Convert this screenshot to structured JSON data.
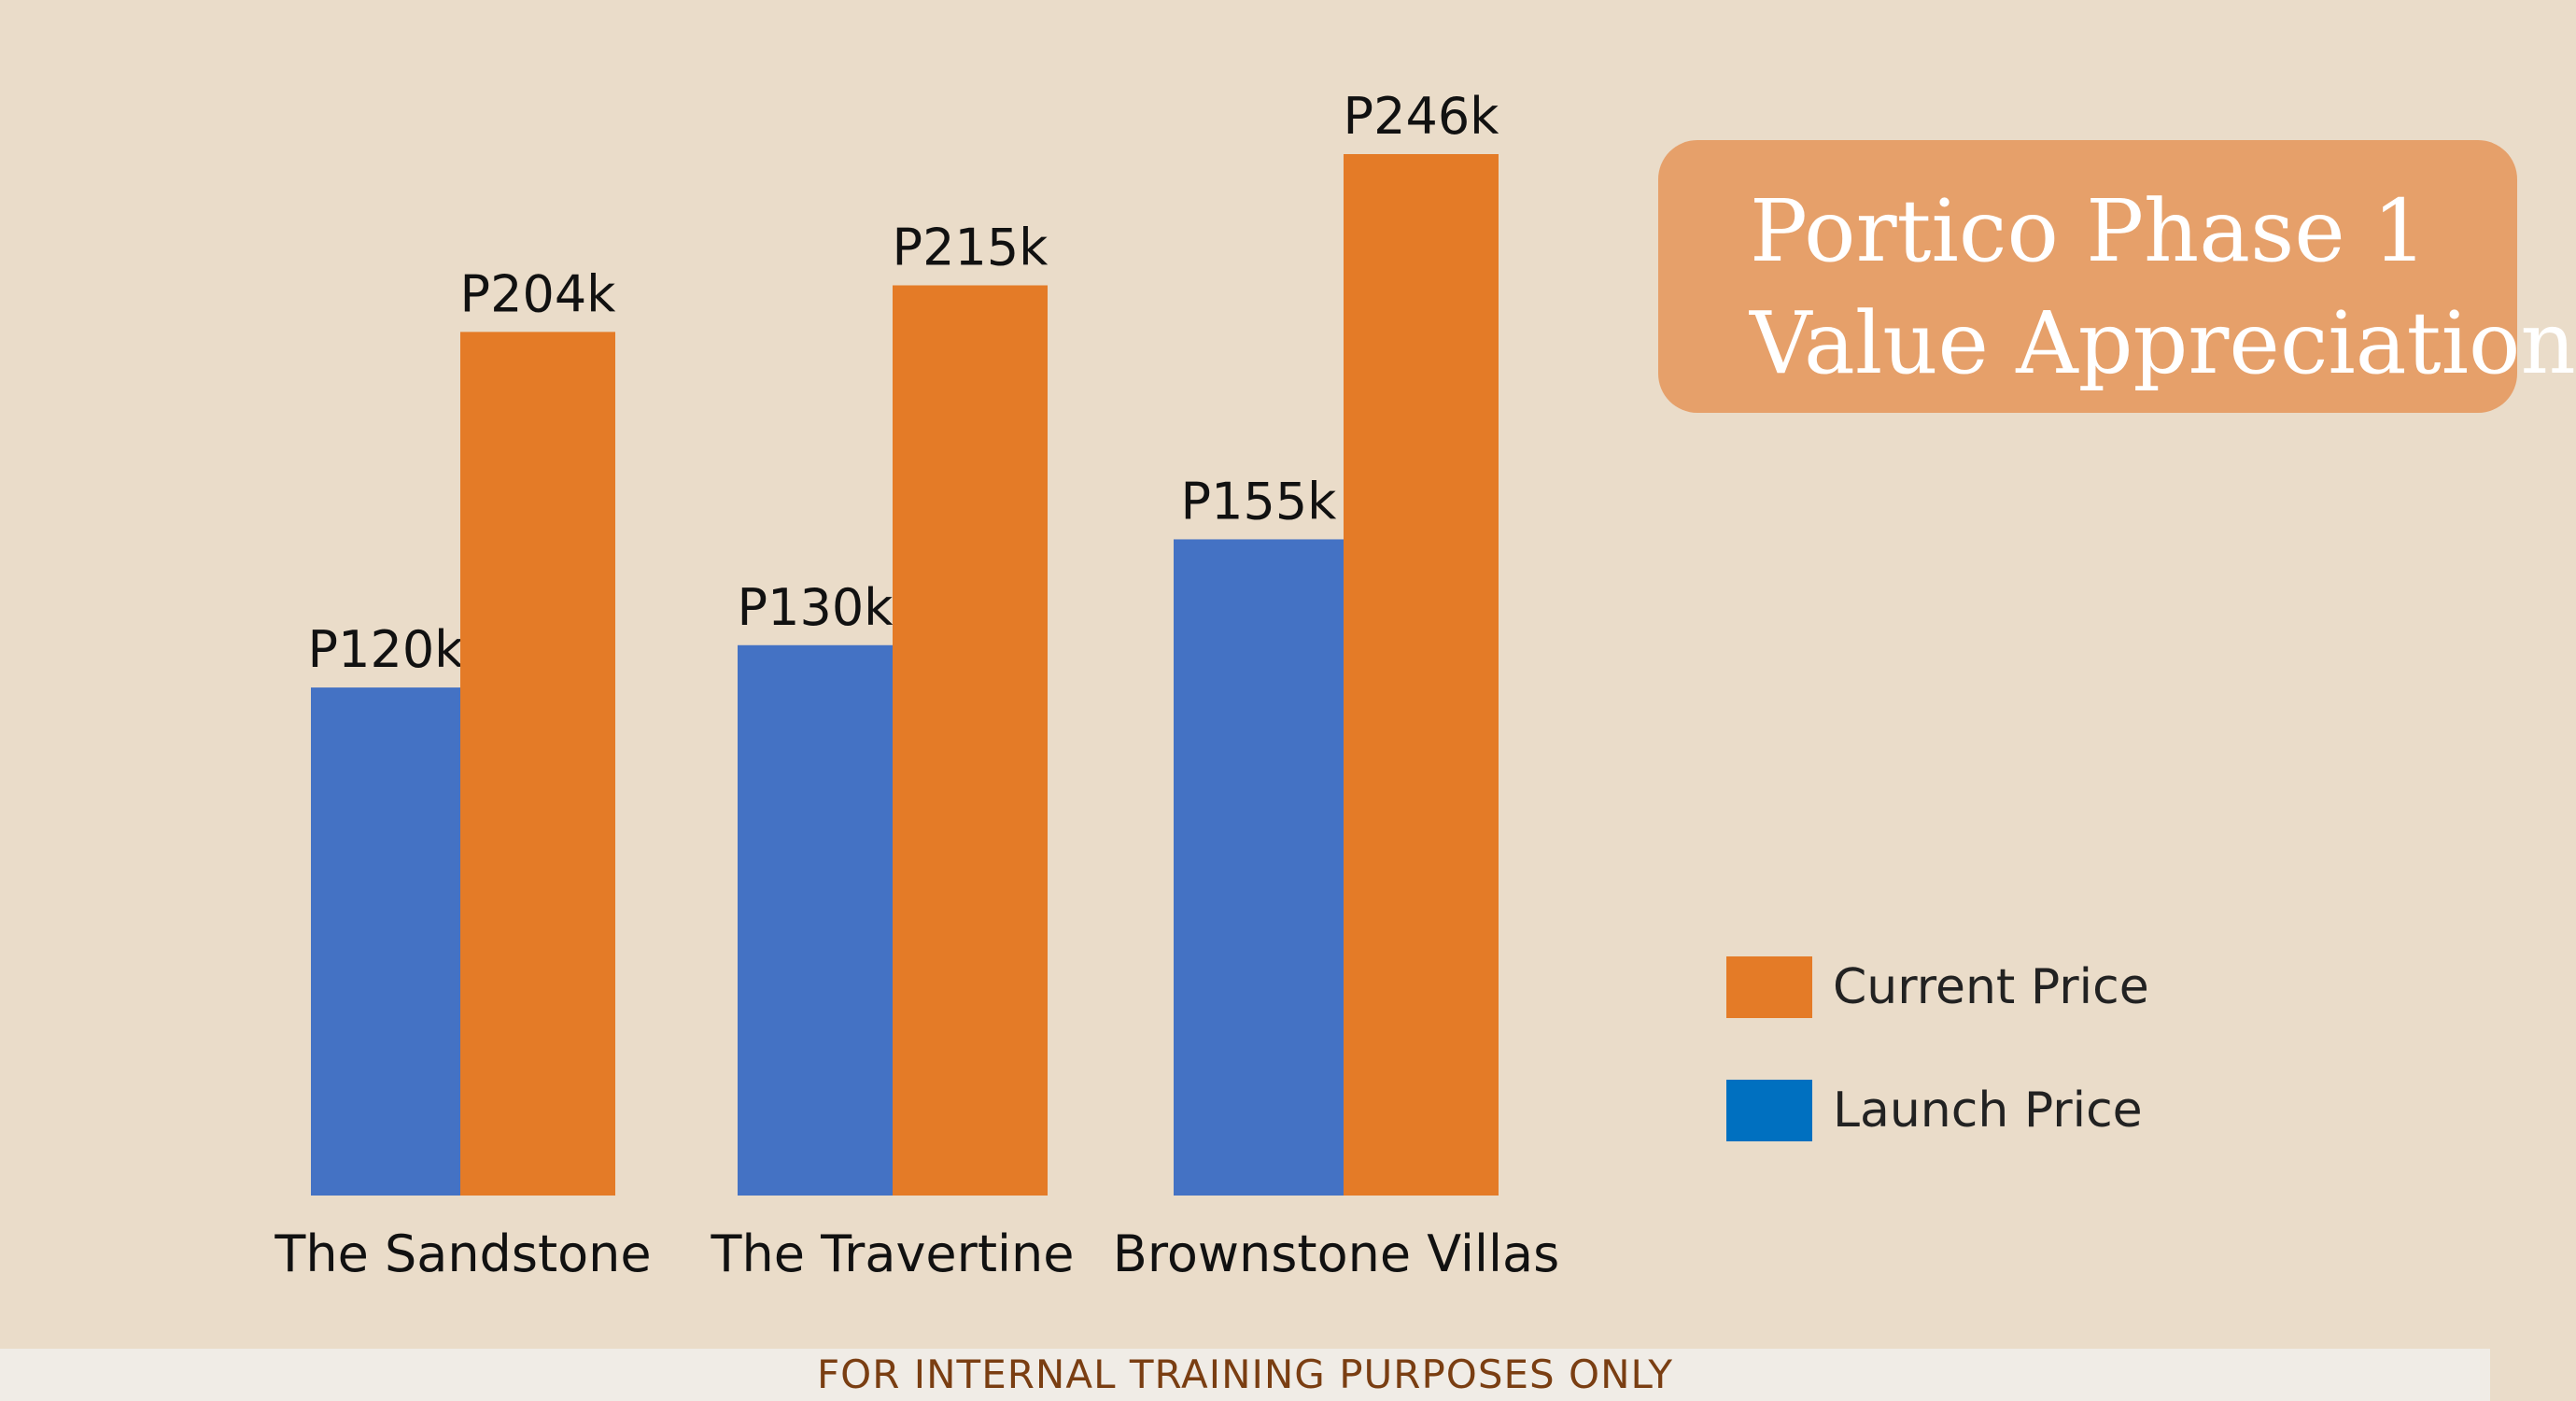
{
  "slide": {
    "background": "#EADCC9",
    "footer_background": "#F0ECE6"
  },
  "title": {
    "line1": "Portico Phase 1",
    "line2": "Value Appreciation",
    "background": "#E6A06A",
    "color": "#FFFFFF"
  },
  "footer": {
    "text": "FOR INTERNAL TRAINING PURPOSES ONLY",
    "color": "#7A3E12"
  },
  "chart_data": {
    "type": "bar",
    "title": "Portico Phase 1 Value Appreciation",
    "categories": [
      "The Sandstone",
      "The Travertine",
      "Brownstone Villas"
    ],
    "series": [
      {
        "name": "Launch Price",
        "values": [
          120,
          130,
          155
        ],
        "labels": [
          "P120k",
          "P130k",
          "P155k"
        ],
        "color": "#4472C4"
      },
      {
        "name": "Current Price",
        "values": [
          204,
          215,
          246
        ],
        "labels": [
          "P204k",
          "P215k",
          "P246k"
        ],
        "color": "#E47B27"
      }
    ],
    "unit": "k",
    "ylim": [
      0,
      260
    ],
    "grid": false,
    "legend": {
      "position": "right",
      "items": [
        {
          "label": "Current Price",
          "color": "#E47B27"
        },
        {
          "label": "Launch Price",
          "color": "#0070C0"
        }
      ]
    }
  }
}
